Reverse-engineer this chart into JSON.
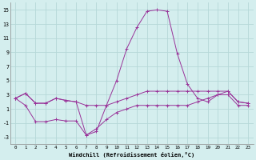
{
  "xlabel": "Windchill (Refroidissement éolien,°C)",
  "x": [
    0,
    1,
    2,
    3,
    4,
    5,
    6,
    7,
    8,
    9,
    10,
    11,
    12,
    13,
    14,
    15,
    16,
    17,
    18,
    19,
    20,
    21,
    22,
    23
  ],
  "line1": [
    2.5,
    3.2,
    1.8,
    1.8,
    2.5,
    2.2,
    2.0,
    1.5,
    1.5,
    1.5,
    2.0,
    2.5,
    3.0,
    3.5,
    3.5,
    3.5,
    3.5,
    3.5,
    3.5,
    3.5,
    3.5,
    3.5,
    2.0,
    1.8
  ],
  "line2": [
    2.5,
    3.2,
    1.8,
    1.8,
    2.5,
    2.2,
    2.0,
    -2.7,
    -2.2,
    1.5,
    5.0,
    9.5,
    12.5,
    14.8,
    15.0,
    14.8,
    8.8,
    4.5,
    2.5,
    2.0,
    3.0,
    3.5,
    2.0,
    1.8
  ],
  "line3": [
    2.5,
    1.5,
    -0.8,
    -0.8,
    -0.5,
    -0.7,
    -0.7,
    -2.7,
    -1.8,
    -0.5,
    0.5,
    1.0,
    1.5,
    1.5,
    1.5,
    1.5,
    1.5,
    1.5,
    2.0,
    2.5,
    3.0,
    3.0,
    1.5,
    1.5
  ],
  "line_color": "#993399",
  "bg_color": "#d4eeee",
  "grid_color": "#b5d8d8",
  "ylim": [
    -4,
    16
  ],
  "yticks": [
    -3,
    -1,
    1,
    3,
    5,
    7,
    9,
    11,
    13,
    15
  ],
  "xticks": [
    0,
    1,
    2,
    3,
    4,
    5,
    6,
    7,
    8,
    9,
    10,
    11,
    12,
    13,
    14,
    15,
    16,
    17,
    18,
    19,
    20,
    21,
    22,
    23
  ],
  "figsize": [
    3.2,
    2.0
  ],
  "dpi": 100
}
